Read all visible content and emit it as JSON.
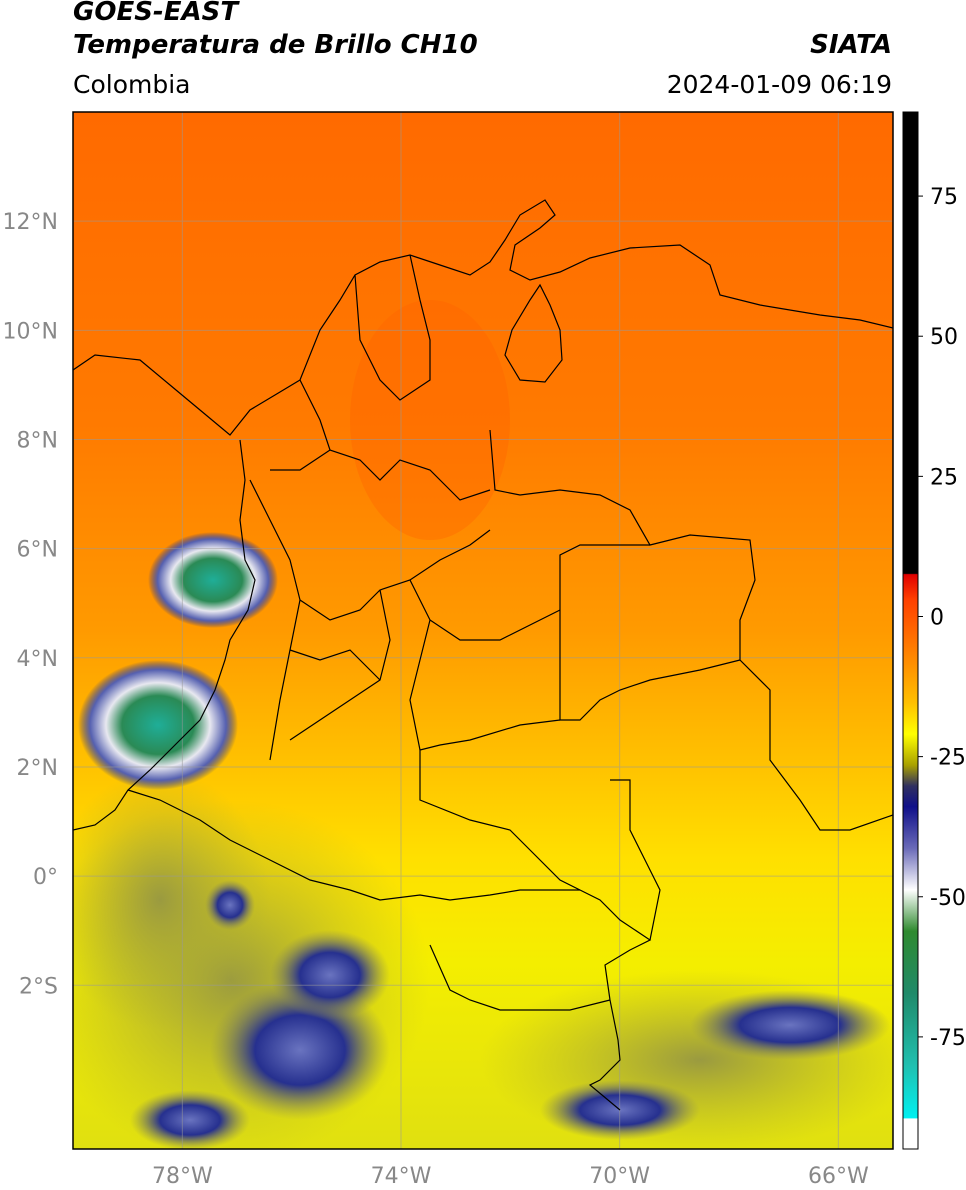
{
  "header": {
    "satellite": "GOES-EAST",
    "product": "Temperatura de Brillo CH10",
    "source": "SIATA",
    "region": "Colombia",
    "datetime": "2024-01-09 06:19"
  },
  "map": {
    "lon_range": [
      -80,
      -65
    ],
    "lat_range": [
      -5,
      14
    ],
    "lat_ticks": [
      {
        "value": 12,
        "label": "12°N"
      },
      {
        "value": 10,
        "label": "10°N"
      },
      {
        "value": 8,
        "label": "8°N"
      },
      {
        "value": 6,
        "label": "6°N"
      },
      {
        "value": 4,
        "label": "4°N"
      },
      {
        "value": 2,
        "label": "2°N"
      },
      {
        "value": 0,
        "label": "0°"
      },
      {
        "value": -2,
        "label": "2°S"
      }
    ],
    "lon_ticks": [
      {
        "value": -78,
        "label": "78°W"
      },
      {
        "value": -74,
        "label": "74°W"
      },
      {
        "value": -70,
        "label": "70°W"
      },
      {
        "value": -66,
        "label": "66°W"
      }
    ],
    "grid": true,
    "colors": {
      "warm": "#ff7300",
      "mid": "#ffe600",
      "cold": "#1b2890",
      "coldest": "#1fb3a0"
    }
  },
  "colorbar": {
    "range": [
      -95,
      90
    ],
    "ticks": [
      {
        "value": 75,
        "label": "75"
      },
      {
        "value": 50,
        "label": "50"
      },
      {
        "value": 25,
        "label": "25"
      },
      {
        "value": 0,
        "label": "0"
      },
      {
        "value": -25,
        "label": "-25"
      },
      {
        "value": -50,
        "label": "-50"
      },
      {
        "value": -75,
        "label": "-75"
      }
    ]
  }
}
